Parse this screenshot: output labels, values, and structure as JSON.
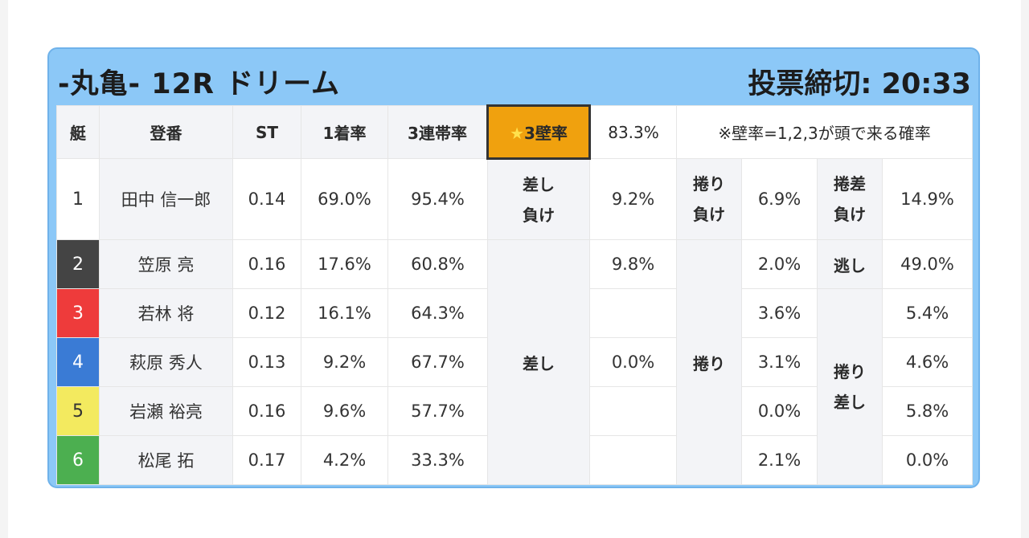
{
  "header": {
    "title": "-丸亀- 12R ドリーム",
    "deadline": "投票締切: 20:33"
  },
  "columns": {
    "lane": "艇",
    "name": "登番",
    "st": "ST",
    "first_rate": "1着率",
    "top3_rate": "3連帯率",
    "wall_star": "★",
    "wall_label": "3壁率",
    "wall_value": "83.3%",
    "note": "※壁率=1,2,3が頭で来る確率"
  },
  "lane_colors": [
    "#ffffff",
    "#444444",
    "#ee3b3b",
    "#3a7bd5",
    "#f3ea5f",
    "#4caf50"
  ],
  "racers": [
    {
      "lane": "1",
      "name": "田中 信一郎",
      "st": "0.14",
      "first": "69.0%",
      "top3": "95.4%"
    },
    {
      "lane": "2",
      "name": "笠原 亮",
      "st": "0.16",
      "first": "17.6%",
      "top3": "60.8%"
    },
    {
      "lane": "3",
      "name": "若林 将",
      "st": "0.12",
      "first": "16.1%",
      "top3": "64.3%"
    },
    {
      "lane": "4",
      "name": "萩原 秀人",
      "st": "0.13",
      "first": "9.2%",
      "top3": "67.7%"
    },
    {
      "lane": "5",
      "name": "岩瀬 裕亮",
      "st": "0.16",
      "first": "9.6%",
      "top3": "57.7%"
    },
    {
      "lane": "6",
      "name": "松尾 拓",
      "st": "0.17",
      "first": "4.2%",
      "top3": "33.3%"
    }
  ],
  "patterns": {
    "sashimake": {
      "line1": "差し",
      "line2": "負け",
      "value": "9.2%"
    },
    "sashi": {
      "label": "差し",
      "values": [
        "9.8%",
        "",
        "0.0%",
        "",
        ""
      ]
    },
    "makurimake": {
      "line1": "捲り",
      "line2": "負け",
      "value": "6.9%"
    },
    "makuri": {
      "label": "捲り",
      "values": [
        "2.0%",
        "3.6%",
        "3.1%",
        "0.0%",
        "2.1%"
      ]
    },
    "makurizashimake": {
      "line1": "捲差",
      "line2": "負け",
      "value": "14.9%"
    },
    "nige": {
      "label": "逃し",
      "value": "49.0%"
    },
    "makurizashi": {
      "line1": "捲り",
      "line2": "差し",
      "values": [
        "5.4%",
        "4.6%",
        "5.8%",
        "0.0%"
      ]
    }
  }
}
